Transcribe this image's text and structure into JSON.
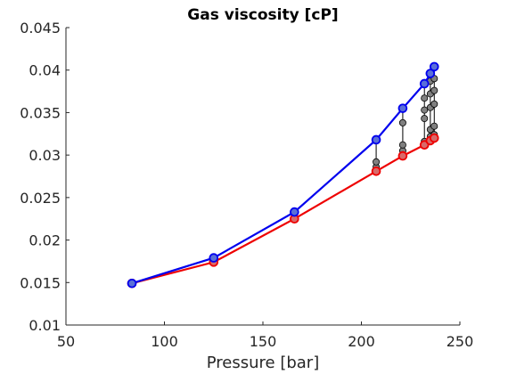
{
  "chart_data": {
    "type": "line",
    "title": "Gas viscosity [cP]",
    "xlabel": "Pressure [bar]",
    "ylabel": "",
    "xlim": [
      50,
      250
    ],
    "ylim": [
      0.01,
      0.045
    ],
    "xticks": [
      50,
      100,
      150,
      200,
      250
    ],
    "xtick_labels": [
      "50",
      "100",
      "150",
      "200",
      "250"
    ],
    "yticks": [
      0.01,
      0.015,
      0.02,
      0.025,
      0.03,
      0.035,
      0.04,
      0.045
    ],
    "ytick_labels": [
      "0.01",
      "0.015",
      "0.02",
      "0.025",
      "0.03",
      "0.035",
      "0.04",
      "0.045"
    ],
    "grid": false,
    "series": [
      {
        "color": "#0000ee",
        "marker_fill": "#5a6fd8",
        "x": [
          83.5,
          125,
          166,
          207.5,
          221,
          232,
          235,
          237
        ],
        "y": [
          0.0149,
          0.0179,
          0.0233,
          0.0318,
          0.0355,
          0.0384,
          0.0396,
          0.0404
        ]
      },
      {
        "color": "#ee0000",
        "marker_fill": "#d86a6a",
        "x": [
          83.5,
          125,
          166,
          207.5,
          221,
          232,
          235,
          237
        ],
        "y": [
          0.0149,
          0.0174,
          0.0225,
          0.0281,
          0.0299,
          0.0312,
          0.0317,
          0.032
        ]
      }
    ],
    "intermediate": {
      "color": "#808080",
      "columns": [
        {
          "x": 207.5,
          "y": [
            0.0286,
            0.0292
          ]
        },
        {
          "x": 221,
          "y": [
            0.0305,
            0.0312,
            0.0338
          ]
        },
        {
          "x": 232,
          "y": [
            0.0316,
            0.0343,
            0.0353,
            0.0367
          ]
        },
        {
          "x": 235,
          "y": [
            0.0322,
            0.033,
            0.0356,
            0.0372,
            0.0387
          ]
        },
        {
          "x": 237,
          "y": [
            0.0324,
            0.0334,
            0.036,
            0.0376,
            0.039
          ]
        }
      ]
    }
  }
}
